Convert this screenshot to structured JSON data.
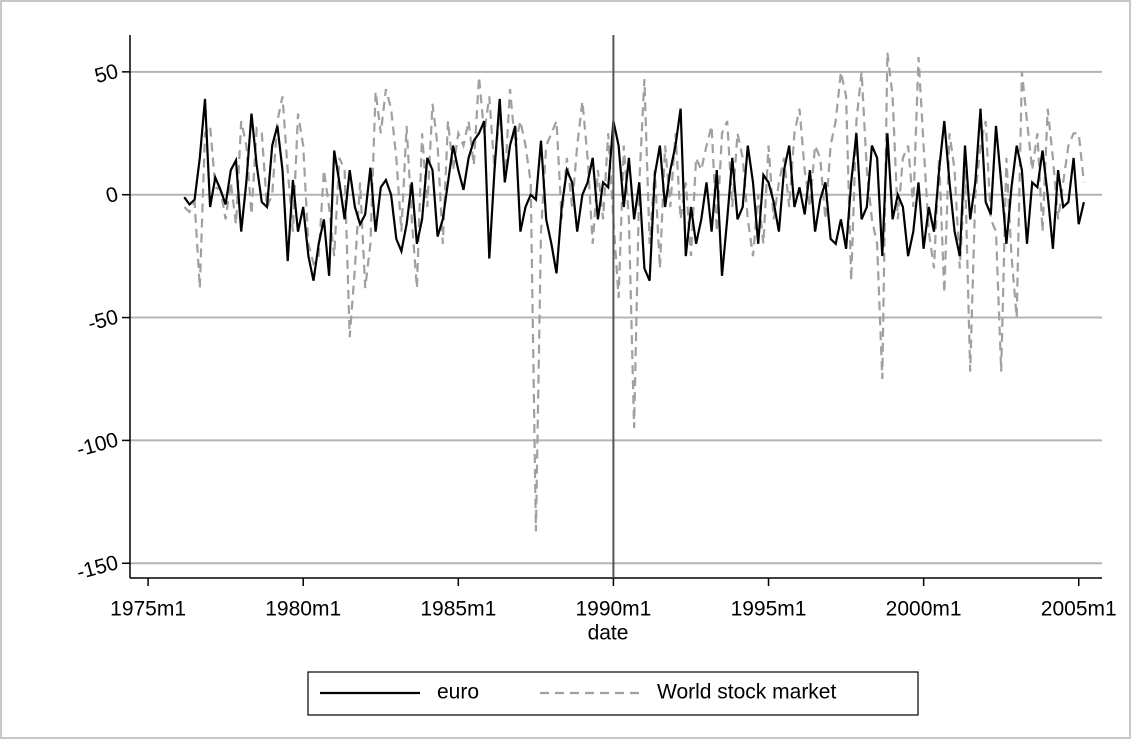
{
  "chart_data": {
    "type": "line",
    "x_label": "date",
    "x": [
      "1976m3",
      "1976m5",
      "1976m7",
      "1976m9",
      "1976m11",
      "1977m1",
      "1977m3",
      "1977m5",
      "1977m7",
      "1977m9",
      "1977m11",
      "1978m1",
      "1978m3",
      "1978m5",
      "1978m7",
      "1978m9",
      "1978m11",
      "1979m1",
      "1979m3",
      "1979m5",
      "1979m7",
      "1979m9",
      "1979m11",
      "1980m1",
      "1980m3",
      "1980m5",
      "1980m7",
      "1980m9",
      "1980m11",
      "1981m1",
      "1981m3",
      "1981m5",
      "1981m7",
      "1981m9",
      "1981m11",
      "1982m1",
      "1982m3",
      "1982m5",
      "1982m7",
      "1982m9",
      "1982m11",
      "1983m1",
      "1983m3",
      "1983m5",
      "1983m7",
      "1983m9",
      "1983m11",
      "1984m1",
      "1984m3",
      "1984m5",
      "1984m7",
      "1984m9",
      "1984m11",
      "1985m1",
      "1985m3",
      "1985m5",
      "1985m7",
      "1985m9",
      "1985m11",
      "1986m1",
      "1986m3",
      "1986m5",
      "1986m7",
      "1986m9",
      "1986m11",
      "1987m1",
      "1987m3",
      "1987m5",
      "1987m7",
      "1987m9",
      "1987m11",
      "1988m1",
      "1988m3",
      "1988m5",
      "1988m7",
      "1988m9",
      "1988m11",
      "1989m1",
      "1989m3",
      "1989m5",
      "1989m7",
      "1989m9",
      "1989m11",
      "1990m1",
      "1990m3",
      "1990m5",
      "1990m7",
      "1990m9",
      "1990m11",
      "1991m1",
      "1991m3",
      "1991m5",
      "1991m7",
      "1991m9",
      "1991m11",
      "1992m1",
      "1992m3",
      "1992m5",
      "1992m7",
      "1992m9",
      "1992m11",
      "1993m1",
      "1993m3",
      "1993m5",
      "1993m7",
      "1993m9",
      "1993m11",
      "1994m1",
      "1994m3",
      "1994m5",
      "1994m7",
      "1994m9",
      "1994m11",
      "1995m1",
      "1995m3",
      "1995m5",
      "1995m7",
      "1995m9",
      "1995m11",
      "1996m1",
      "1996m3",
      "1996m5",
      "1996m7",
      "1996m9",
      "1996m11",
      "1997m1",
      "1997m3",
      "1997m5",
      "1997m7",
      "1997m9",
      "1997m11",
      "1998m1",
      "1998m3",
      "1998m5",
      "1998m7",
      "1998m9",
      "1998m11",
      "1999m1",
      "1999m3",
      "1999m5",
      "1999m7",
      "1999m9",
      "1999m11",
      "2000m1",
      "2000m3",
      "2000m5",
      "2000m7",
      "2000m9",
      "2000m11",
      "2001m1",
      "2001m3",
      "2001m5",
      "2001m7",
      "2001m9",
      "2001m11",
      "2002m1",
      "2002m3",
      "2002m5",
      "2002m7",
      "2002m9",
      "2002m11",
      "2003m1",
      "2003m3",
      "2003m5",
      "2003m7",
      "2003m9",
      "2003m11",
      "2004m1",
      "2004m3",
      "2004m5",
      "2004m7",
      "2004m9",
      "2004m11",
      "2005m1",
      "2005m3"
    ],
    "series": [
      {
        "name": "euro",
        "color": "#000000",
        "dash": "none",
        "values": [
          -1,
          -4,
          -2,
          15,
          39,
          -5,
          7,
          2,
          -4,
          10,
          14,
          -15,
          5,
          33,
          12,
          -3,
          -5,
          20,
          28,
          10,
          -27,
          6,
          -15,
          -5,
          -25,
          -35,
          -20,
          -10,
          -33,
          18,
          5,
          -10,
          10,
          -5,
          -12,
          -8,
          11,
          -15,
          3,
          6,
          0,
          -18,
          -23,
          -12,
          5,
          -20,
          -10,
          15,
          10,
          -17,
          -10,
          5,
          20,
          10,
          2,
          15,
          22,
          25,
          30,
          -26,
          10,
          39,
          5,
          20,
          28,
          -15,
          -5,
          0,
          -2,
          22,
          -10,
          -20,
          -32,
          -5,
          10,
          5,
          -15,
          0,
          5,
          15,
          -10,
          5,
          3,
          30,
          20,
          -5,
          15,
          -10,
          5,
          -30,
          -35,
          8,
          20,
          -5,
          10,
          20,
          35,
          -25,
          -5,
          -20,
          -10,
          5,
          -15,
          10,
          -33,
          -10,
          15,
          -10,
          -5,
          20,
          5,
          -20,
          8,
          5,
          -3,
          -15,
          10,
          20,
          -5,
          3,
          -8,
          10,
          -15,
          -2,
          5,
          -18,
          -20,
          -10,
          -22,
          5,
          25,
          -10,
          -5,
          20,
          15,
          -25,
          25,
          -10,
          0,
          -5,
          -25,
          -15,
          5,
          -22,
          -5,
          -15,
          10,
          30,
          5,
          -15,
          -25,
          20,
          -10,
          5,
          35,
          -3,
          -8,
          28,
          5,
          -20,
          3,
          20,
          10,
          -20,
          5,
          3,
          18,
          0,
          -22,
          10,
          -5,
          -3,
          15,
          -12,
          -3
        ]
      },
      {
        "name": "World stock market",
        "color": "#a0a0a0",
        "dash": "9,6",
        "values": [
          -5,
          -7,
          -3,
          -38,
          25,
          28,
          3,
          2,
          -10,
          5,
          -12,
          30,
          20,
          -8,
          27,
          25,
          -5,
          0,
          30,
          40,
          10,
          -15,
          33,
          20,
          -20,
          -28,
          -25,
          10,
          -5,
          -25,
          15,
          10,
          -58,
          -30,
          5,
          -38,
          -20,
          42,
          25,
          43,
          35,
          15,
          -15,
          28,
          -10,
          -38,
          25,
          -5,
          37,
          20,
          -20,
          30,
          10,
          25,
          20,
          30,
          12,
          48,
          25,
          40,
          10,
          35,
          5,
          43,
          20,
          30,
          20,
          5,
          -137,
          -15,
          20,
          25,
          30,
          -10,
          15,
          -5,
          20,
          38,
          15,
          -20,
          10,
          -10,
          25,
          -10,
          -42,
          20,
          -10,
          -95,
          5,
          47,
          -20,
          10,
          -30,
          20,
          -5,
          25,
          -10,
          5,
          -25,
          15,
          10,
          20,
          28,
          -15,
          25,
          30,
          -5,
          25,
          15,
          -10,
          -25,
          0,
          -20,
          20,
          -10,
          5,
          15,
          -5,
          25,
          35,
          10,
          -5,
          20,
          15,
          -10,
          20,
          30,
          50,
          40,
          -35,
          30,
          50,
          10,
          -10,
          -20,
          -75,
          58,
          40,
          -10,
          15,
          20,
          -5,
          56,
          20,
          -15,
          -30,
          15,
          -40,
          25,
          10,
          -30,
          10,
          -72,
          0,
          20,
          30,
          -10,
          -15,
          -72,
          15,
          -25,
          -50,
          50,
          30,
          10,
          25,
          -15,
          35,
          15,
          -10,
          5,
          20,
          25,
          25,
          5
        ]
      }
    ],
    "xlim": [
      "1974m6",
      "2005m10"
    ],
    "xticks": [
      "1975m1",
      "1980m1",
      "1985m1",
      "1990m1",
      "1995m1",
      "2000m1",
      "2005m1"
    ],
    "ylim": [
      -156,
      65
    ],
    "yticks": [
      -150,
      -100,
      -50,
      0,
      50
    ],
    "grid": true,
    "xline": "1990m1",
    "legend": "bottom"
  }
}
